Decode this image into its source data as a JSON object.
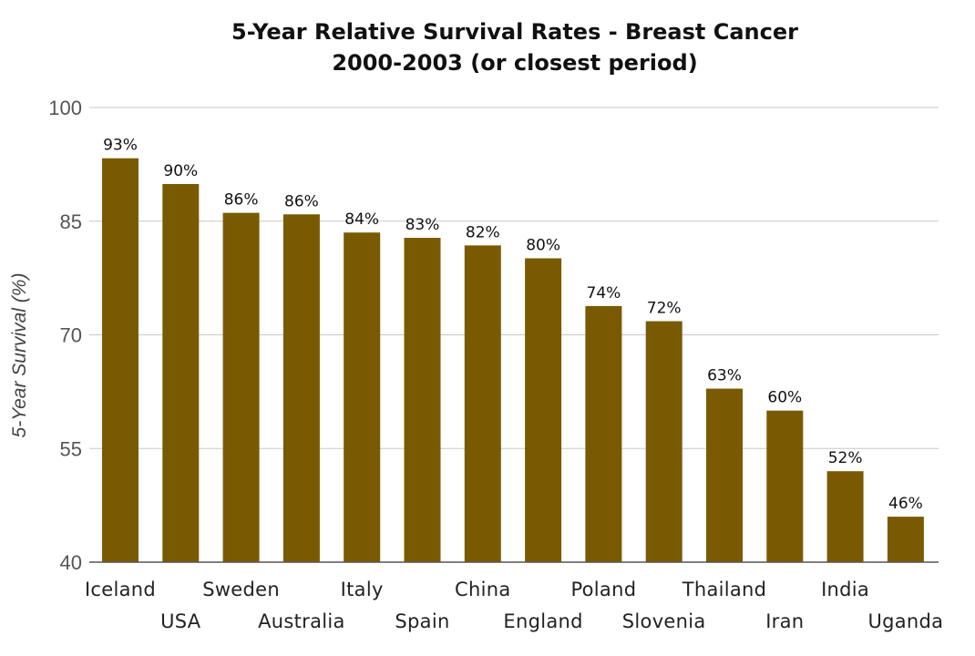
{
  "chart_data": {
    "type": "bar",
    "title": "5-Year Relative Survival Rates - Breast Cancer",
    "subtitle": "2000-2003 (or closest period)",
    "xlabel": "",
    "ylabel": "5-Year Survival (%)",
    "ylim": [
      40,
      100
    ],
    "yticks": [
      40,
      55,
      70,
      85,
      100
    ],
    "grid": true,
    "bar_color": "#7a5a00",
    "categories": [
      "Iceland",
      "USA",
      "Sweden",
      "Australia",
      "Italy",
      "Spain",
      "China",
      "England",
      "Poland",
      "Slovenia",
      "Thailand",
      "Iran",
      "India",
      "Uganda"
    ],
    "values": [
      93.3,
      89.9,
      86.1,
      85.9,
      83.5,
      82.8,
      81.8,
      80.1,
      73.8,
      71.8,
      62.9,
      60.0,
      52.0,
      46.0
    ],
    "data_labels": [
      "93%",
      "90%",
      "86%",
      "86%",
      "84%",
      "83%",
      "82%",
      "80%",
      "74%",
      "72%",
      "63%",
      "60%",
      "52%",
      "46%"
    ]
  }
}
